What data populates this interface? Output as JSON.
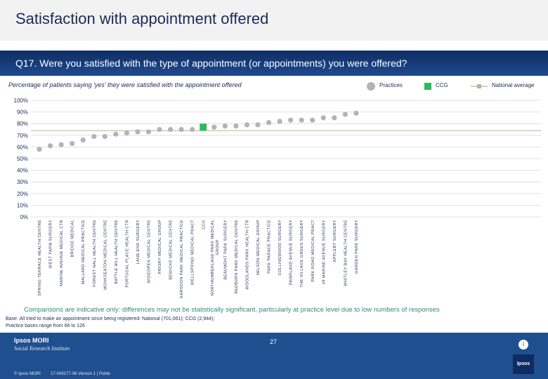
{
  "header": {
    "title": "Satisfaction with appointment offered",
    "question": "Q17. Were you satisfied with the type of appointment (or appointments) you were offered?",
    "subtitle": "Percentage of patients saying 'yes' they were satisfied with the appointment offered"
  },
  "legend": {
    "practices": "Practices",
    "ccg": "CCG",
    "national": "National average"
  },
  "colors": {
    "practice": "#b3b3b3",
    "ccg": "#2dbb59",
    "national": "#c8d7b6",
    "grid": "#d9d9d9",
    "text": "#1c2b57"
  },
  "chart_data": {
    "type": "scatter",
    "title": "Satisfaction with appointment offered",
    "ylabel": "Percentage of patients saying 'yes' they were satisfied with the appointment offered",
    "ylim": [
      0,
      100
    ],
    "yticks": [
      0,
      10,
      20,
      30,
      40,
      50,
      60,
      70,
      80,
      90,
      100
    ],
    "ytick_labels": [
      "0%",
      "10%",
      "20%",
      "30%",
      "40%",
      "50%",
      "60%",
      "70%",
      "80%",
      "90%",
      "100%"
    ],
    "national_average": 74,
    "ccg_value": 77,
    "ccg_label": "CCG",
    "points": [
      {
        "label": "SPRING TERRACE HEALTH CENTRE",
        "value": 58
      },
      {
        "label": "WEST FARM SURGERY",
        "value": 61
      },
      {
        "label": "MARINE AVENUE MEDICAL CTR",
        "value": 62
      },
      {
        "label": "BRIDGE MEDICAL",
        "value": 63
      },
      {
        "label": "MALLARD MEDICAL PRACTICE",
        "value": 66
      },
      {
        "label": "FOREST HALL HEALTH CENTRE",
        "value": 69
      },
      {
        "label": "MONKSEATON MEDICAL CENTRE",
        "value": 69
      },
      {
        "label": "BATTLE HILL HEALTH CENTRE",
        "value": 71
      },
      {
        "label": "PORTUGAL PLACE HEALTH CTR",
        "value": 72
      },
      {
        "label": "LANE END SURGERY",
        "value": 73
      },
      {
        "label": "WIDEOPEN MEDICAL CENTRE",
        "value": 73
      },
      {
        "label": "PRIORY MEDICAL GROUP",
        "value": 75
      },
      {
        "label": "BEWICKE MEDICAL CENTRE",
        "value": 75
      },
      {
        "label": "EARSDON PARK MEDICAL PRACTICE",
        "value": 75
      },
      {
        "label": "WELLSPRING MEDICAL PRACT",
        "value": 75
      },
      {
        "label": "CCG",
        "value": 77,
        "is_ccg": true
      },
      {
        "label": "NORTHUMBERLAND PARK MEDICAL GROUP",
        "value": 77
      },
      {
        "label": "BEAUMONT PARK SURGERY",
        "value": 78
      },
      {
        "label": "REDBURN PARK MEDICAL CENTRE",
        "value": 78
      },
      {
        "label": "WOODLANDS PARK HEALTH CTR",
        "value": 79
      },
      {
        "label": "NELSON MEDICAL GROUP",
        "value": 79
      },
      {
        "label": "PARK PARADE PRACTICE",
        "value": 81
      },
      {
        "label": "COLLINGWOOD SURGERY",
        "value": 82
      },
      {
        "label": "SWARLAND AVENUE SURGERY",
        "value": 83
      },
      {
        "label": "THE VILLAGE GREEN SURGERY",
        "value": 83
      },
      {
        "label": "PARK ROAD MEDICAL PRACT",
        "value": 83
      },
      {
        "label": "49 MARINE AVENUE SURGERY",
        "value": 85
      },
      {
        "label": "APPLEBY SURGERY",
        "value": 85
      },
      {
        "label": "WHITLEY BAY HEALTH CENTRE",
        "value": 88
      },
      {
        "label": "GARDEN PARK SURGERY",
        "value": 89
      }
    ],
    "note": "Comparisons are indicative only: differences may not be statistically significant, particularly at practice level due to low numbers of responses"
  },
  "footer": {
    "base_line1": "Base: All tried to make an appointment since being registered: National (701,061); CCG (2,944);",
    "base_line2": "Practice bases range from 66 to 126",
    "logo": "Ipsos MORI",
    "logo_sub1": "Social Research Institute",
    "logo_sub2": "",
    "copyright": "© Ipsos MORI",
    "job": "17-043177-06 Version 1 | Public",
    "page_number": "27",
    "badge": "Ipsos",
    "badge_icon": "i"
  }
}
